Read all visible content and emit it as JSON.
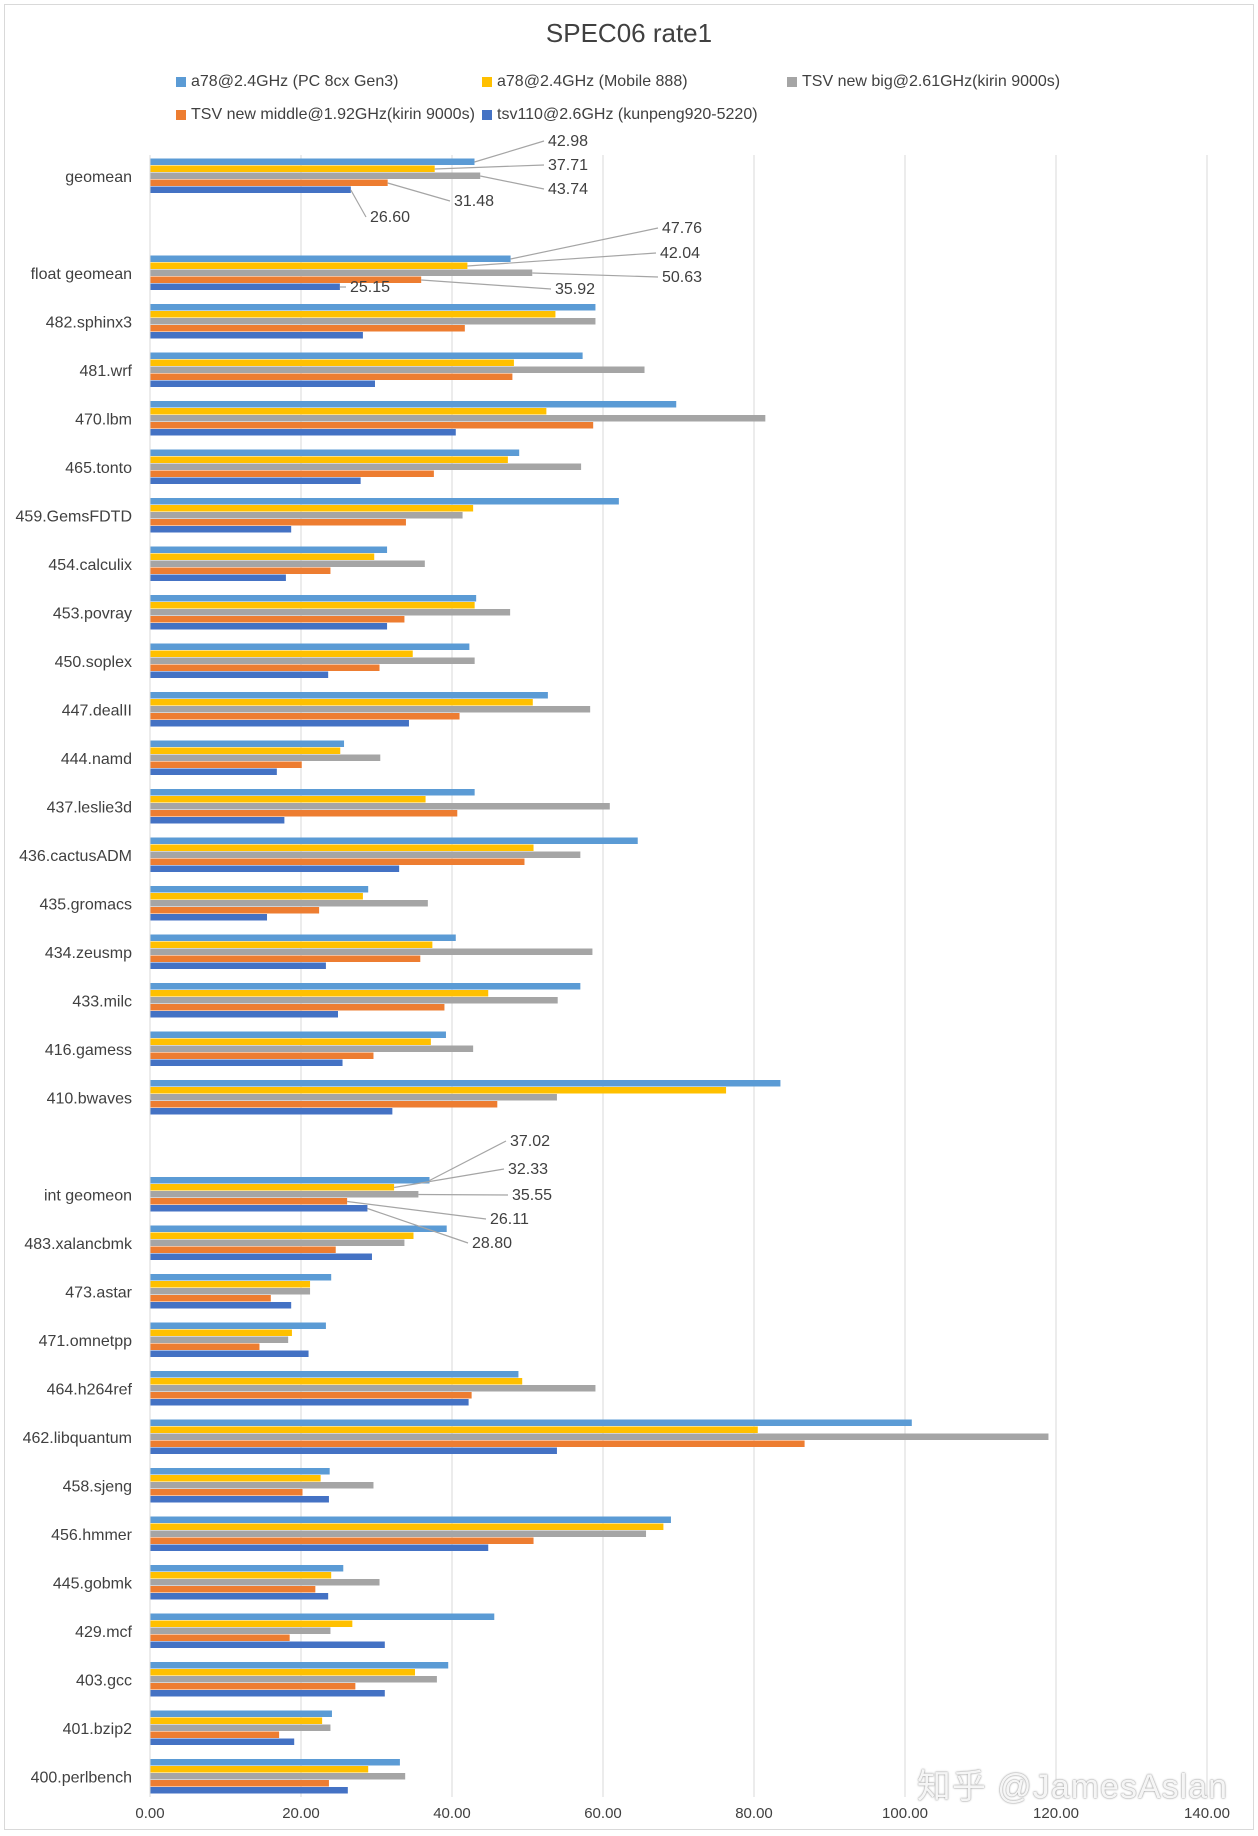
{
  "chart_data": {
    "type": "bar",
    "orientation": "horizontal",
    "title": "SPEC06 rate1",
    "xlim": [
      0,
      140
    ],
    "xticks": [
      "0.00",
      "20.00",
      "40.00",
      "60.00",
      "80.00",
      "100.00",
      "120.00",
      "140.00"
    ],
    "xtick_values": [
      0,
      20,
      40,
      60,
      80,
      100,
      120,
      140
    ],
    "grid": true,
    "legend_position": "top",
    "colors": {
      "a78_pc": "#5b9bd5",
      "a78_mobile": "#ffc000",
      "tsv_big": "#a5a5a5",
      "tsv_middle": "#ed7d31",
      "tsv110": "#4472c4",
      "grid": "#d9d9d9",
      "text": "#404040",
      "leader": "#a5a5a5"
    },
    "series": [
      {
        "key": "a78_pc",
        "name": "a78@2.4GHz (PC 8cx Gen3)"
      },
      {
        "key": "a78_mobile",
        "name": "a78@2.4GHz (Mobile 888)"
      },
      {
        "key": "tsv_big",
        "name": "TSV new big@2.61GHz(kirin 9000s)"
      },
      {
        "key": "tsv_middle",
        "name": "TSV new middle@1.92GHz(kirin 9000s)"
      },
      {
        "key": "tsv110",
        "name": "tsv110@2.6GHz (kunpeng920-5220)"
      }
    ],
    "categories": [
      {
        "label": "geomean",
        "values": [
          42.98,
          37.71,
          43.74,
          31.48,
          26.6
        ],
        "labels": [
          "42.98",
          "37.71",
          "43.74",
          "31.48",
          "26.60"
        ]
      },
      {
        "label": "",
        "values": null
      },
      {
        "label": "float geomean",
        "values": [
          47.76,
          42.04,
          50.63,
          35.92,
          25.15
        ],
        "labels": [
          "47.76",
          "42.04",
          "50.63",
          "35.92",
          "25.15"
        ]
      },
      {
        "label": "482.sphinx3",
        "values": [
          59.0,
          53.7,
          59.0,
          41.7,
          28.2
        ]
      },
      {
        "label": "481.wrf",
        "values": [
          57.3,
          48.2,
          65.5,
          48.0,
          29.8
        ]
      },
      {
        "label": "470.lbm",
        "values": [
          69.7,
          52.5,
          81.5,
          58.7,
          40.5
        ]
      },
      {
        "label": "465.tonto",
        "values": [
          48.9,
          47.4,
          57.1,
          37.6,
          27.9
        ]
      },
      {
        "label": "459.GemsFDTD",
        "values": [
          62.1,
          42.8,
          41.4,
          33.9,
          18.7
        ]
      },
      {
        "label": "454.calculix",
        "values": [
          31.4,
          29.7,
          36.4,
          23.9,
          18.0
        ]
      },
      {
        "label": "453.povray",
        "values": [
          43.2,
          43.0,
          47.7,
          33.7,
          31.4
        ]
      },
      {
        "label": "450.soplex",
        "values": [
          42.3,
          34.8,
          43.0,
          30.4,
          23.6
        ]
      },
      {
        "label": "447.dealII",
        "values": [
          52.7,
          50.7,
          58.3,
          41.0,
          34.3
        ]
      },
      {
        "label": "444.namd",
        "values": [
          25.7,
          25.2,
          30.5,
          20.1,
          16.8
        ]
      },
      {
        "label": "437.leslie3d",
        "values": [
          43.0,
          36.5,
          60.9,
          40.7,
          17.8
        ]
      },
      {
        "label": "436.cactusADM",
        "values": [
          64.6,
          50.8,
          57.0,
          49.6,
          33.0
        ]
      },
      {
        "label": "435.gromacs",
        "values": [
          28.9,
          28.2,
          36.8,
          22.4,
          15.5
        ]
      },
      {
        "label": "434.zeusmp",
        "values": [
          40.5,
          37.4,
          58.6,
          35.8,
          23.3
        ]
      },
      {
        "label": "433.milc",
        "values": [
          57.0,
          44.8,
          54.0,
          39.0,
          24.9
        ]
      },
      {
        "label": "416.gamess",
        "values": [
          39.2,
          37.2,
          42.8,
          29.6,
          25.5
        ]
      },
      {
        "label": "410.bwaves",
        "values": [
          83.5,
          76.3,
          53.9,
          46.0,
          32.1
        ]
      },
      {
        "label": "",
        "values": null
      },
      {
        "label": "int geomeon",
        "values": [
          37.02,
          32.33,
          35.55,
          26.11,
          28.8
        ],
        "labels": [
          "37.02",
          "32.33",
          "35.55",
          "26.11",
          "28.80"
        ]
      },
      {
        "label": "483.xalancbmk",
        "values": [
          39.3,
          34.9,
          33.7,
          24.6,
          29.4
        ]
      },
      {
        "label": "473.astar",
        "values": [
          24.0,
          21.2,
          21.2,
          16.0,
          18.7
        ]
      },
      {
        "label": "471.omnetpp",
        "values": [
          23.3,
          18.8,
          18.3,
          14.5,
          21.0
        ]
      },
      {
        "label": "464.h264ref",
        "values": [
          48.8,
          49.3,
          59.0,
          42.6,
          42.2
        ]
      },
      {
        "label": "462.libquantum",
        "values": [
          100.9,
          80.5,
          119.0,
          86.7,
          53.9
        ]
      },
      {
        "label": "458.sjeng",
        "values": [
          23.8,
          22.6,
          29.6,
          20.2,
          23.7
        ]
      },
      {
        "label": "456.hmmer",
        "values": [
          69.0,
          68.0,
          65.7,
          50.8,
          44.8
        ]
      },
      {
        "label": "445.gobmk",
        "values": [
          25.6,
          24.0,
          30.4,
          21.9,
          23.6
        ]
      },
      {
        "label": "429.mcf",
        "values": [
          45.6,
          26.8,
          23.9,
          18.5,
          31.1
        ]
      },
      {
        "label": "403.gcc",
        "values": [
          39.5,
          35.1,
          38.0,
          27.2,
          31.1
        ]
      },
      {
        "label": "401.bzip2",
        "values": [
          24.1,
          22.8,
          23.9,
          17.1,
          19.1
        ]
      },
      {
        "label": "400.perlbench",
        "values": [
          33.1,
          28.9,
          33.8,
          23.7,
          26.2
        ]
      }
    ]
  },
  "watermark": "知乎 @JamesAslan"
}
